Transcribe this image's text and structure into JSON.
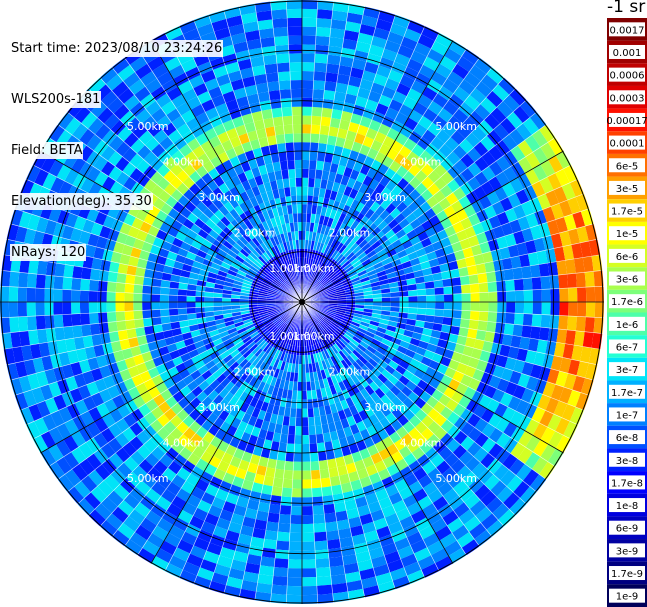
{
  "info": {
    "start_time": "Start time: 2023/08/10 23:24:26",
    "device": "WLS200s-181",
    "field": "Field: BETA",
    "elevation": "Elevation(deg): 35.30",
    "nrays": "NRays: 120"
  },
  "colorbar": {
    "title": "-1 sr",
    "labels": [
      "0.0017",
      "0.001",
      "0.0006",
      "0.0003",
      "0.00017",
      "0.0001",
      "6e-5",
      "3e-5",
      "1.7e-5",
      "1e-5",
      "6e-6",
      "3e-6",
      "1.7e-6",
      "1e-6",
      "6e-7",
      "3e-7",
      "1.7e-7",
      "1e-7",
      "6e-8",
      "3e-8",
      "1.7e-8",
      "1e-8",
      "6e-9",
      "3e-9",
      "1.7e-9",
      "1e-9"
    ],
    "colors": [
      "#800000",
      "#a00000",
      "#c00000",
      "#e00000",
      "#ff1000",
      "#ff4000",
      "#ff7000",
      "#ff9f00",
      "#ffcf00",
      "#ffff00",
      "#d4ff23",
      "#a9ff4d",
      "#7dff7a",
      "#4dffa9",
      "#23ffd4",
      "#00e4f8",
      "#00b0ff",
      "#0080ff",
      "#0050ff",
      "#0020ff",
      "#0000ff",
      "#0000df",
      "#0000c0",
      "#0000a0",
      "#000080",
      "#00005a"
    ]
  },
  "chart_data": {
    "type": "heatmap",
    "projection": "polar (PPI scan)",
    "field": "BETA",
    "units": "-1 sr",
    "n_rays": 120,
    "elevation_deg": 35.3,
    "range_rings_km": [
      1.0,
      2.0,
      3.0,
      4.0,
      5.0
    ],
    "ring_labels": [
      "1.00km",
      "2.00km",
      "3.00km",
      "4.00km",
      "5.00km"
    ],
    "color_scale": "log",
    "value_range": [
      1e-09,
      0.0017
    ],
    "structure": [
      {
        "feature": "background",
        "range_km": [
          0.0,
          6.0
        ],
        "typical_value": 1e-07
      },
      {
        "feature": "enhanced ring",
        "range_km": [
          3.3,
          3.7
        ],
        "typical_value": 1e-05
      },
      {
        "feature": "strong echoes east edge",
        "range_km": [
          5.2,
          5.8
        ],
        "typical_value": 6e-05
      }
    ]
  }
}
